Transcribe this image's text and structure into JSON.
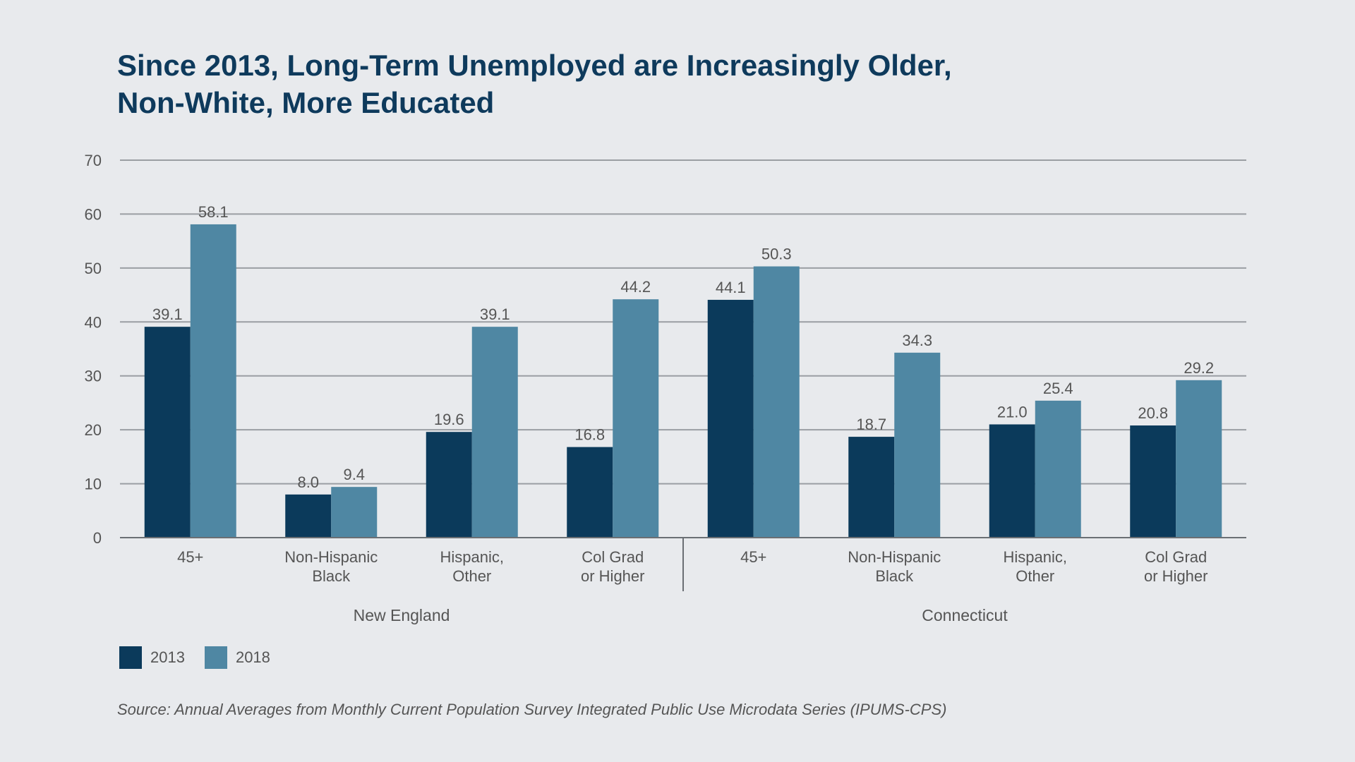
{
  "title_lines": [
    "Since 2013, Long-Term Unemployed are Increasingly Older,",
    "Non-White, More Educated"
  ],
  "source": "Source: Annual Averages from Monthly Current Population Survey Integrated Public Use Microdata Series (IPUMS-CPS)",
  "colors": {
    "y2013": "#0b3a5b",
    "y2018": "#4f87a3",
    "grid": "#9a9ea3",
    "axis": "#6b6f74",
    "text": "#555555"
  },
  "legend": [
    {
      "label": "2013",
      "color": "#0b3a5b"
    },
    {
      "label": "2018",
      "color": "#4f87a3"
    }
  ],
  "chart_data": {
    "type": "bar",
    "title": "Since 2013, Long-Term Unemployed are Increasingly Older, Non-White, More Educated",
    "ylim": [
      0,
      70
    ],
    "yticks": [
      0,
      10,
      20,
      30,
      40,
      50,
      60,
      70
    ],
    "grid": true,
    "legend_position": "bottom-left",
    "groups": [
      {
        "name": "New England",
        "categories": [
          {
            "lines": [
              "45+"
            ],
            "values": [
              39.1,
              58.1
            ]
          },
          {
            "lines": [
              "Non-Hispanic",
              "Black"
            ],
            "values": [
              8.0,
              9.4
            ]
          },
          {
            "lines": [
              "Hispanic,",
              "Other"
            ],
            "values": [
              19.6,
              39.1
            ]
          },
          {
            "lines": [
              "Col Grad",
              "or Higher"
            ],
            "values": [
              16.8,
              44.2
            ]
          }
        ]
      },
      {
        "name": "Connecticut",
        "categories": [
          {
            "lines": [
              "45+"
            ],
            "values": [
              44.1,
              50.3
            ]
          },
          {
            "lines": [
              "Non-Hispanic",
              "Black"
            ],
            "values": [
              18.7,
              34.3
            ]
          },
          {
            "lines": [
              "Hispanic,",
              "Other"
            ],
            "values": [
              21.0,
              25.4
            ]
          },
          {
            "lines": [
              "Col Grad",
              "or Higher"
            ],
            "values": [
              20.8,
              29.2
            ]
          }
        ]
      }
    ],
    "series": [
      {
        "name": "2013"
      },
      {
        "name": "2018"
      }
    ]
  }
}
